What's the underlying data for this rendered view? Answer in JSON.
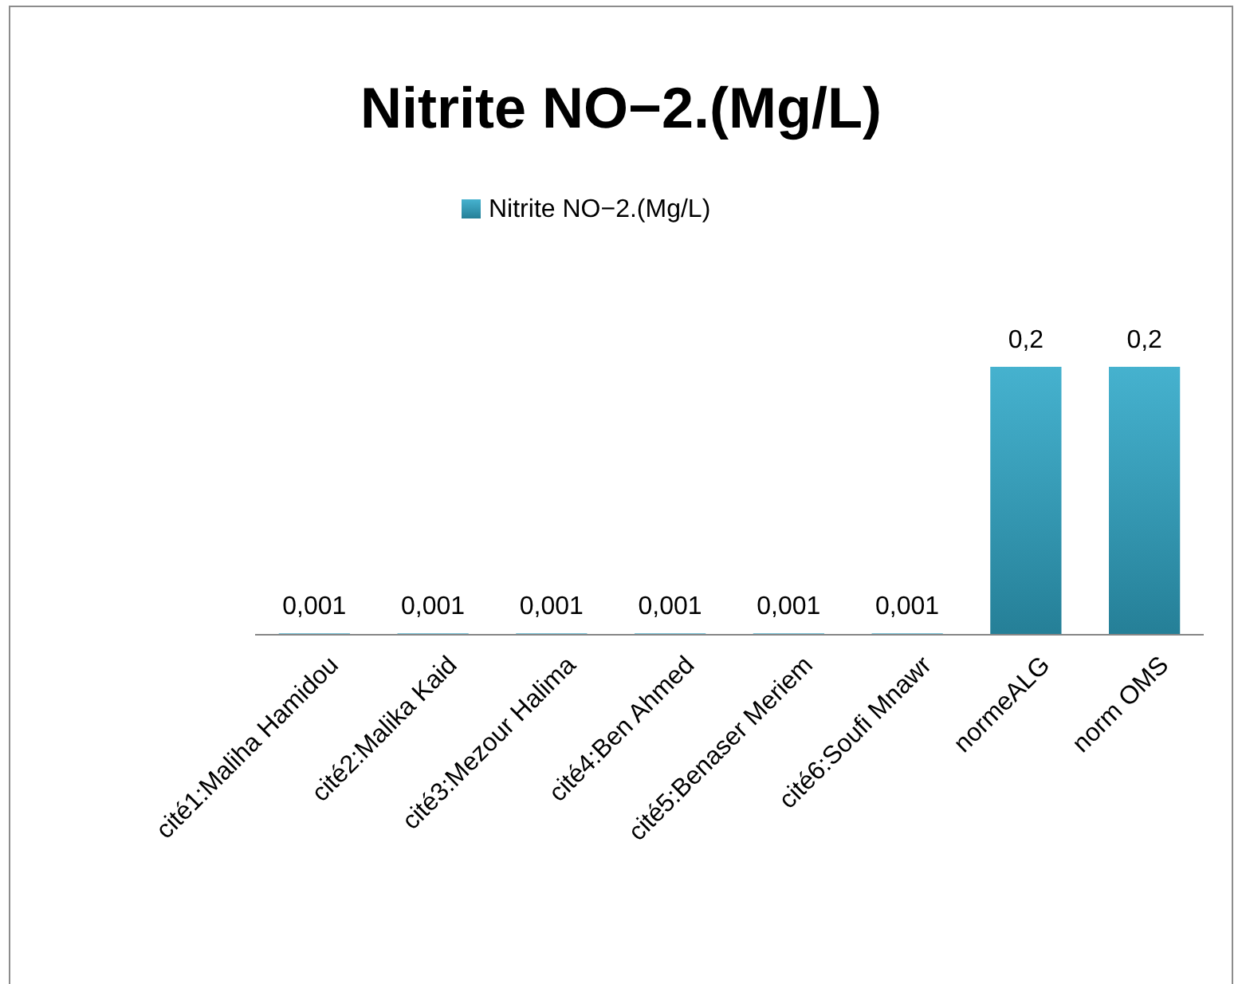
{
  "chart_data": {
    "type": "bar",
    "title": "Nitrite  NO−2.(Mg/L)",
    "categories": [
      "cité1:Maliha Hamidou",
      "cité2:Malika Kaid",
      "cité3:Mezour Halima",
      "cité4:Ben Ahmed",
      "cité5:Benaser Meriem",
      "cité6:Soufi Mnawr",
      "normeALG",
      "norm OMS"
    ],
    "series": [
      {
        "name": "Nitrite  NO−2.(Mg/L)",
        "color": "#31a9c9",
        "values": [
          0.001,
          0.001,
          0.001,
          0.001,
          0.001,
          0.001,
          0.2,
          0.2
        ],
        "value_labels": [
          "0,001",
          "0,001",
          "0,001",
          "0,001",
          "0,001",
          "0,001",
          "0,2",
          "0,2"
        ]
      }
    ],
    "legend": "top"
  }
}
